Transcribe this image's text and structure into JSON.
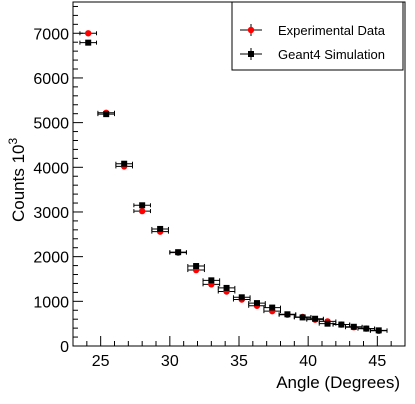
{
  "chart_data": {
    "type": "scatter",
    "xlabel": "Angle (Degrees)",
    "ylabel": "Counts 10",
    "ylabel_exponent": "3",
    "xlim": [
      23,
      47
    ],
    "ylim": [
      0,
      7700
    ],
    "x_ticks": [
      25,
      30,
      35,
      40,
      45
    ],
    "y_ticks": [
      0,
      1000,
      2000,
      3000,
      4000,
      5000,
      6000,
      7000
    ],
    "x_error": 0.6,
    "grid": false,
    "legend_position": "top-right",
    "series": [
      {
        "name": "Experimental Data",
        "color": "#ff0000",
        "marker": "circle",
        "x": [
          24.1,
          25.4,
          26.7,
          28.0,
          29.3,
          30.6,
          31.9,
          33.0,
          34.1,
          35.2,
          36.3,
          37.4,
          38.5,
          39.6,
          40.5,
          41.4,
          42.4,
          43.3,
          44.2,
          45.1
        ],
        "y": [
          7000,
          5220,
          4020,
          3020,
          2560,
          2090,
          1700,
          1380,
          1220,
          1040,
          900,
          780,
          700,
          650,
          590,
          550,
          480,
          420,
          390,
          340
        ]
      },
      {
        "name": "Geant4 Simulation",
        "color": "#000000",
        "marker": "square",
        "x": [
          24.1,
          25.4,
          26.7,
          28.0,
          29.3,
          30.6,
          31.9,
          33.0,
          34.1,
          35.2,
          36.3,
          37.4,
          38.5,
          39.6,
          40.5,
          41.4,
          42.4,
          43.3,
          44.2,
          45.1
        ],
        "y": [
          6790,
          5190,
          4080,
          3150,
          2620,
          2100,
          1790,
          1470,
          1300,
          1090,
          960,
          860,
          710,
          640,
          610,
          500,
          480,
          430,
          390,
          350
        ]
      }
    ]
  }
}
